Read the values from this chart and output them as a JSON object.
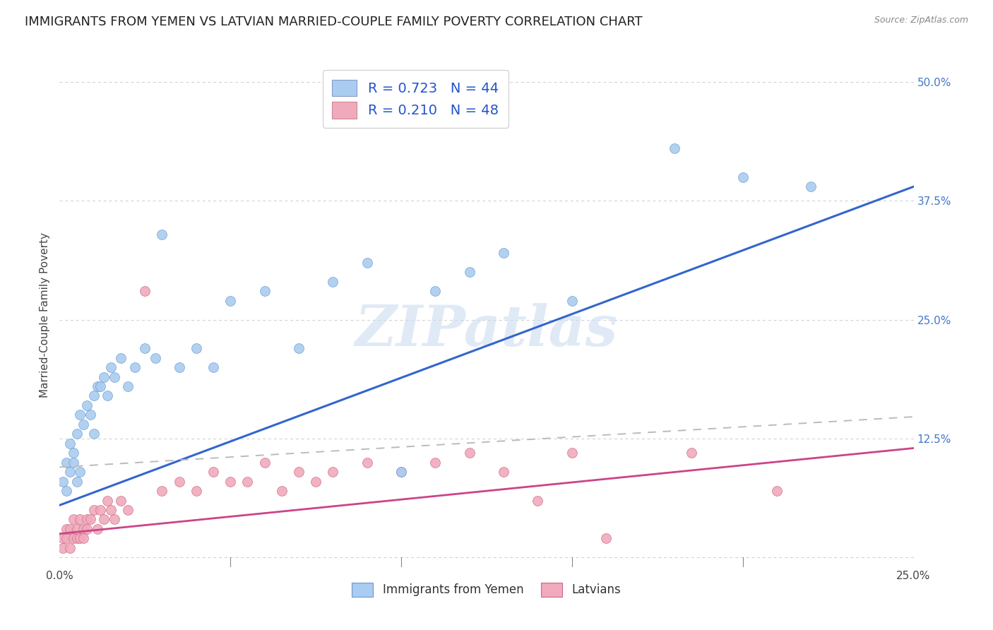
{
  "title": "IMMIGRANTS FROM YEMEN VS LATVIAN MARRIED-COUPLE FAMILY POVERTY CORRELATION CHART",
  "source": "Source: ZipAtlas.com",
  "ylabel": "Married-Couple Family Poverty",
  "xmin": 0.0,
  "xmax": 0.25,
  "ymin": -0.01,
  "ymax": 0.52,
  "yticks": [
    0.0,
    0.125,
    0.25,
    0.375,
    0.5
  ],
  "ytick_labels_right": [
    "",
    "12.5%",
    "25.0%",
    "37.5%",
    "50.0%"
  ],
  "xticks": [
    0.0,
    0.05,
    0.1,
    0.15,
    0.2,
    0.25
  ],
  "xtick_labels": [
    "0.0%",
    "",
    "",
    "",
    "",
    "25.0%"
  ],
  "legend_entries": [
    {
      "label": "R = 0.723   N = 44",
      "color": "#aaccf0"
    },
    {
      "label": "R = 0.210   N = 48",
      "color": "#f0aabb"
    }
  ],
  "series_blue": {
    "name": "Immigrants from Yemen",
    "color": "#aaccf0",
    "edge_color": "#6699cc",
    "x": [
      0.001,
      0.002,
      0.002,
      0.003,
      0.003,
      0.004,
      0.004,
      0.005,
      0.005,
      0.006,
      0.006,
      0.007,
      0.008,
      0.009,
      0.01,
      0.01,
      0.011,
      0.012,
      0.013,
      0.014,
      0.015,
      0.016,
      0.018,
      0.02,
      0.022,
      0.025,
      0.028,
      0.03,
      0.035,
      0.04,
      0.045,
      0.05,
      0.06,
      0.07,
      0.08,
      0.09,
      0.1,
      0.11,
      0.12,
      0.13,
      0.15,
      0.18,
      0.2,
      0.22
    ],
    "y": [
      0.08,
      0.07,
      0.1,
      0.09,
      0.12,
      0.1,
      0.11,
      0.08,
      0.13,
      0.09,
      0.15,
      0.14,
      0.16,
      0.15,
      0.17,
      0.13,
      0.18,
      0.18,
      0.19,
      0.17,
      0.2,
      0.19,
      0.21,
      0.18,
      0.2,
      0.22,
      0.21,
      0.34,
      0.2,
      0.22,
      0.2,
      0.27,
      0.28,
      0.22,
      0.29,
      0.31,
      0.09,
      0.28,
      0.3,
      0.32,
      0.27,
      0.43,
      0.4,
      0.39
    ]
  },
  "series_pink": {
    "name": "Latvians",
    "color": "#f0aabb",
    "edge_color": "#cc6688",
    "x": [
      0.001,
      0.001,
      0.002,
      0.002,
      0.003,
      0.003,
      0.004,
      0.004,
      0.005,
      0.005,
      0.006,
      0.006,
      0.007,
      0.007,
      0.008,
      0.008,
      0.009,
      0.01,
      0.011,
      0.012,
      0.013,
      0.014,
      0.015,
      0.016,
      0.018,
      0.02,
      0.025,
      0.03,
      0.035,
      0.04,
      0.045,
      0.05,
      0.055,
      0.06,
      0.065,
      0.07,
      0.075,
      0.08,
      0.09,
      0.1,
      0.11,
      0.12,
      0.13,
      0.14,
      0.15,
      0.16,
      0.185,
      0.21
    ],
    "y": [
      0.01,
      0.02,
      0.02,
      0.03,
      0.01,
      0.03,
      0.02,
      0.04,
      0.02,
      0.03,
      0.02,
      0.04,
      0.03,
      0.02,
      0.03,
      0.04,
      0.04,
      0.05,
      0.03,
      0.05,
      0.04,
      0.06,
      0.05,
      0.04,
      0.06,
      0.05,
      0.28,
      0.07,
      0.08,
      0.07,
      0.09,
      0.08,
      0.08,
      0.1,
      0.07,
      0.09,
      0.08,
      0.09,
      0.1,
      0.09,
      0.1,
      0.11,
      0.09,
      0.06,
      0.11,
      0.02,
      0.11,
      0.07
    ]
  },
  "blue_line": {
    "x0": 0.0,
    "y0": 0.055,
    "x1": 0.25,
    "y1": 0.39,
    "color": "#3366cc",
    "linewidth": 2.2
  },
  "pink_line": {
    "x0": 0.0,
    "y0": 0.025,
    "x1": 0.25,
    "y1": 0.115,
    "color": "#cc4488",
    "linewidth": 2.0
  },
  "dashed_line": {
    "x0": 0.0,
    "y0": 0.095,
    "x1": 0.25,
    "y1": 0.148,
    "color": "#bbbbbb",
    "linewidth": 1.4
  },
  "watermark": "ZIPatlas",
  "background_color": "#ffffff",
  "grid_color": "#cccccc",
  "title_fontsize": 13,
  "axis_label_fontsize": 11,
  "tick_fontsize": 11,
  "marker_size": 100
}
